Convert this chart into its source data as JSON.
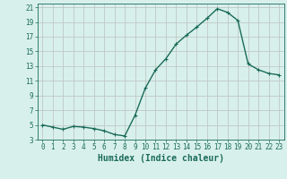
{
  "x": [
    0,
    1,
    2,
    3,
    4,
    5,
    6,
    7,
    8,
    9,
    10,
    11,
    12,
    13,
    14,
    15,
    16,
    17,
    18,
    19,
    20,
    21,
    22,
    23
  ],
  "y": [
    5,
    4.7,
    4.4,
    4.8,
    4.7,
    4.5,
    4.2,
    3.7,
    3.5,
    6.3,
    10.0,
    12.5,
    14.0,
    16.0,
    17.2,
    18.3,
    19.5,
    20.8,
    20.3,
    19.2,
    13.3,
    12.5,
    12.0,
    11.8
  ],
  "line_color": "#1a6b5a",
  "marker": "+",
  "marker_size": 3,
  "bg_color": "#d8f0ec",
  "grid_color": "#c0c8c4",
  "xlabel": "Humidex (Indice chaleur)",
  "xlim": [
    -0.5,
    23.5
  ],
  "ylim": [
    3,
    21.5
  ],
  "yticks": [
    3,
    5,
    7,
    9,
    11,
    13,
    15,
    17,
    19,
    21
  ],
  "xticks": [
    0,
    1,
    2,
    3,
    4,
    5,
    6,
    7,
    8,
    9,
    10,
    11,
    12,
    13,
    14,
    15,
    16,
    17,
    18,
    19,
    20,
    21,
    22,
    23
  ],
  "tick_color": "#1a6b5a",
  "tick_fontsize": 5.5,
  "xlabel_fontsize": 7,
  "linewidth": 1.0
}
